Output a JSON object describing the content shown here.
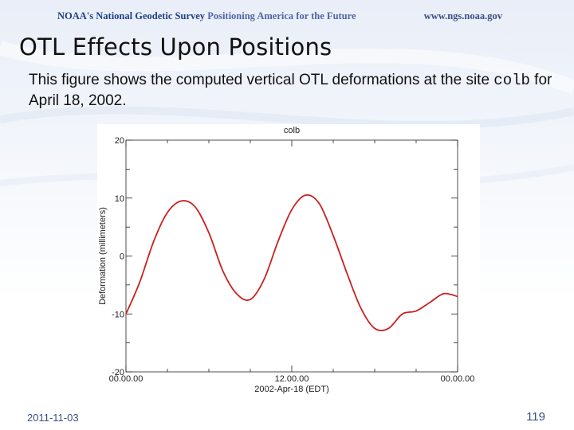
{
  "header": {
    "brand": "NOAA's National Geodetic Survey",
    "tagline": "Positioning America for the Future",
    "url": "www.ngs.noaa.gov"
  },
  "slide": {
    "title": "OTL Effects Upon Positions",
    "desc_part1": "This figure shows the computed vertical OTL deformations at the site ",
    "site_code": "colb",
    "desc_part2": " for April 18, 2002."
  },
  "footer": {
    "date": "2011-11-03",
    "page": "119"
  },
  "colors": {
    "header_text": "#3a4f83",
    "curve": "#cc1f1f",
    "axis": "#222222"
  },
  "chart_data": {
    "type": "line",
    "title": "colb",
    "xlabel": "2002-Apr-18 (EDT)",
    "ylabel": "Deformation (millimeters)",
    "ylim": [
      -20,
      20
    ],
    "xlim": [
      0,
      24
    ],
    "y_ticks": [
      "-20",
      "-10",
      "0",
      "10",
      "20"
    ],
    "x_ticks": [
      {
        "value": 0,
        "label": "00.00.00"
      },
      {
        "value": 12,
        "label": "12.00.00"
      },
      {
        "value": 24,
        "label": "00.00.00"
      }
    ],
    "series": [
      {
        "x": [
          0,
          1,
          2,
          3,
          4,
          5,
          6,
          7,
          8,
          9,
          10,
          11,
          12,
          13,
          14,
          15,
          16,
          17,
          18,
          19,
          20,
          21,
          22,
          23,
          24
        ],
        "values": [
          -10,
          -4.5,
          2.5,
          7.5,
          9.5,
          8.5,
          4,
          -2.5,
          -6.5,
          -7.5,
          -4,
          2.5,
          8,
          10.5,
          9,
          3.5,
          -3,
          -9,
          -12.5,
          -12.5,
          -10,
          -9.5,
          -8,
          -6.5,
          -7
        ]
      }
    ]
  }
}
